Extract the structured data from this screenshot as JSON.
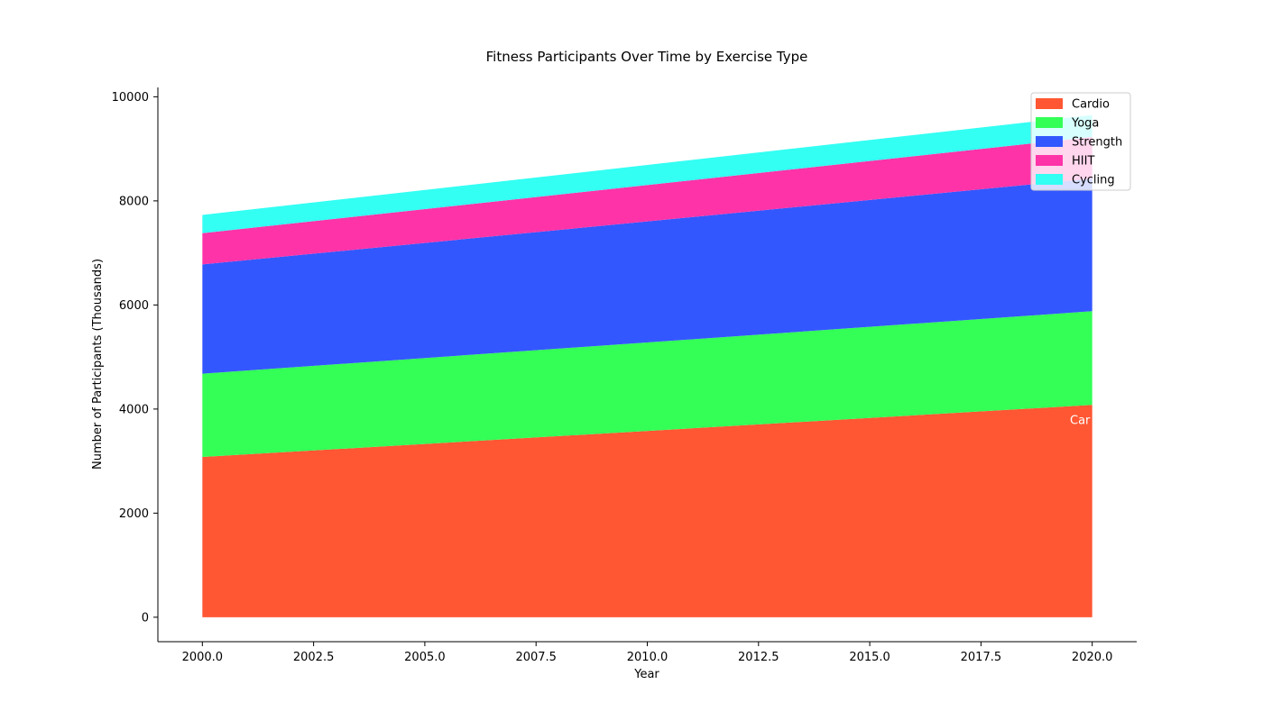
{
  "chart_data": {
    "type": "area",
    "stacked": true,
    "title": "Fitness Participants Over Time by Exercise Type",
    "xlabel": "Year",
    "ylabel": "Number of Participants (Thousands)",
    "x": [
      2000,
      2020
    ],
    "xlim": [
      1999,
      2021
    ],
    "ylim": [
      -470,
      10180
    ],
    "xticks": [
      2000.0,
      2002.5,
      2005.0,
      2007.5,
      2010.0,
      2012.5,
      2015.0,
      2017.5,
      2020.0
    ],
    "xtick_labels": [
      "2000.0",
      "2002.5",
      "2005.0",
      "2007.5",
      "2010.0",
      "2012.5",
      "2015.0",
      "2017.5",
      "2020.0"
    ],
    "yticks": [
      0,
      2000,
      4000,
      6000,
      8000,
      10000
    ],
    "ytick_labels": [
      "0",
      "2000",
      "4000",
      "6000",
      "8000",
      "10000"
    ],
    "grid": false,
    "legend_position": "top-right",
    "series": [
      {
        "name": "Cardio",
        "color": "#ff5733",
        "values": [
          3080,
          4080
        ]
      },
      {
        "name": "Yoga",
        "color": "#33ff57",
        "values": [
          1600,
          1800
        ]
      },
      {
        "name": "Strength",
        "color": "#3357ff",
        "values": [
          2100,
          2550
        ]
      },
      {
        "name": "HIIT",
        "color": "#ff33a8",
        "values": [
          600,
          800
        ]
      },
      {
        "name": "Cycling",
        "color": "#33fff3",
        "values": [
          350,
          420
        ]
      }
    ],
    "annotations": [
      {
        "text": "Car",
        "x": 2019.5,
        "y": 3780,
        "color": "#ffffff"
      }
    ]
  }
}
